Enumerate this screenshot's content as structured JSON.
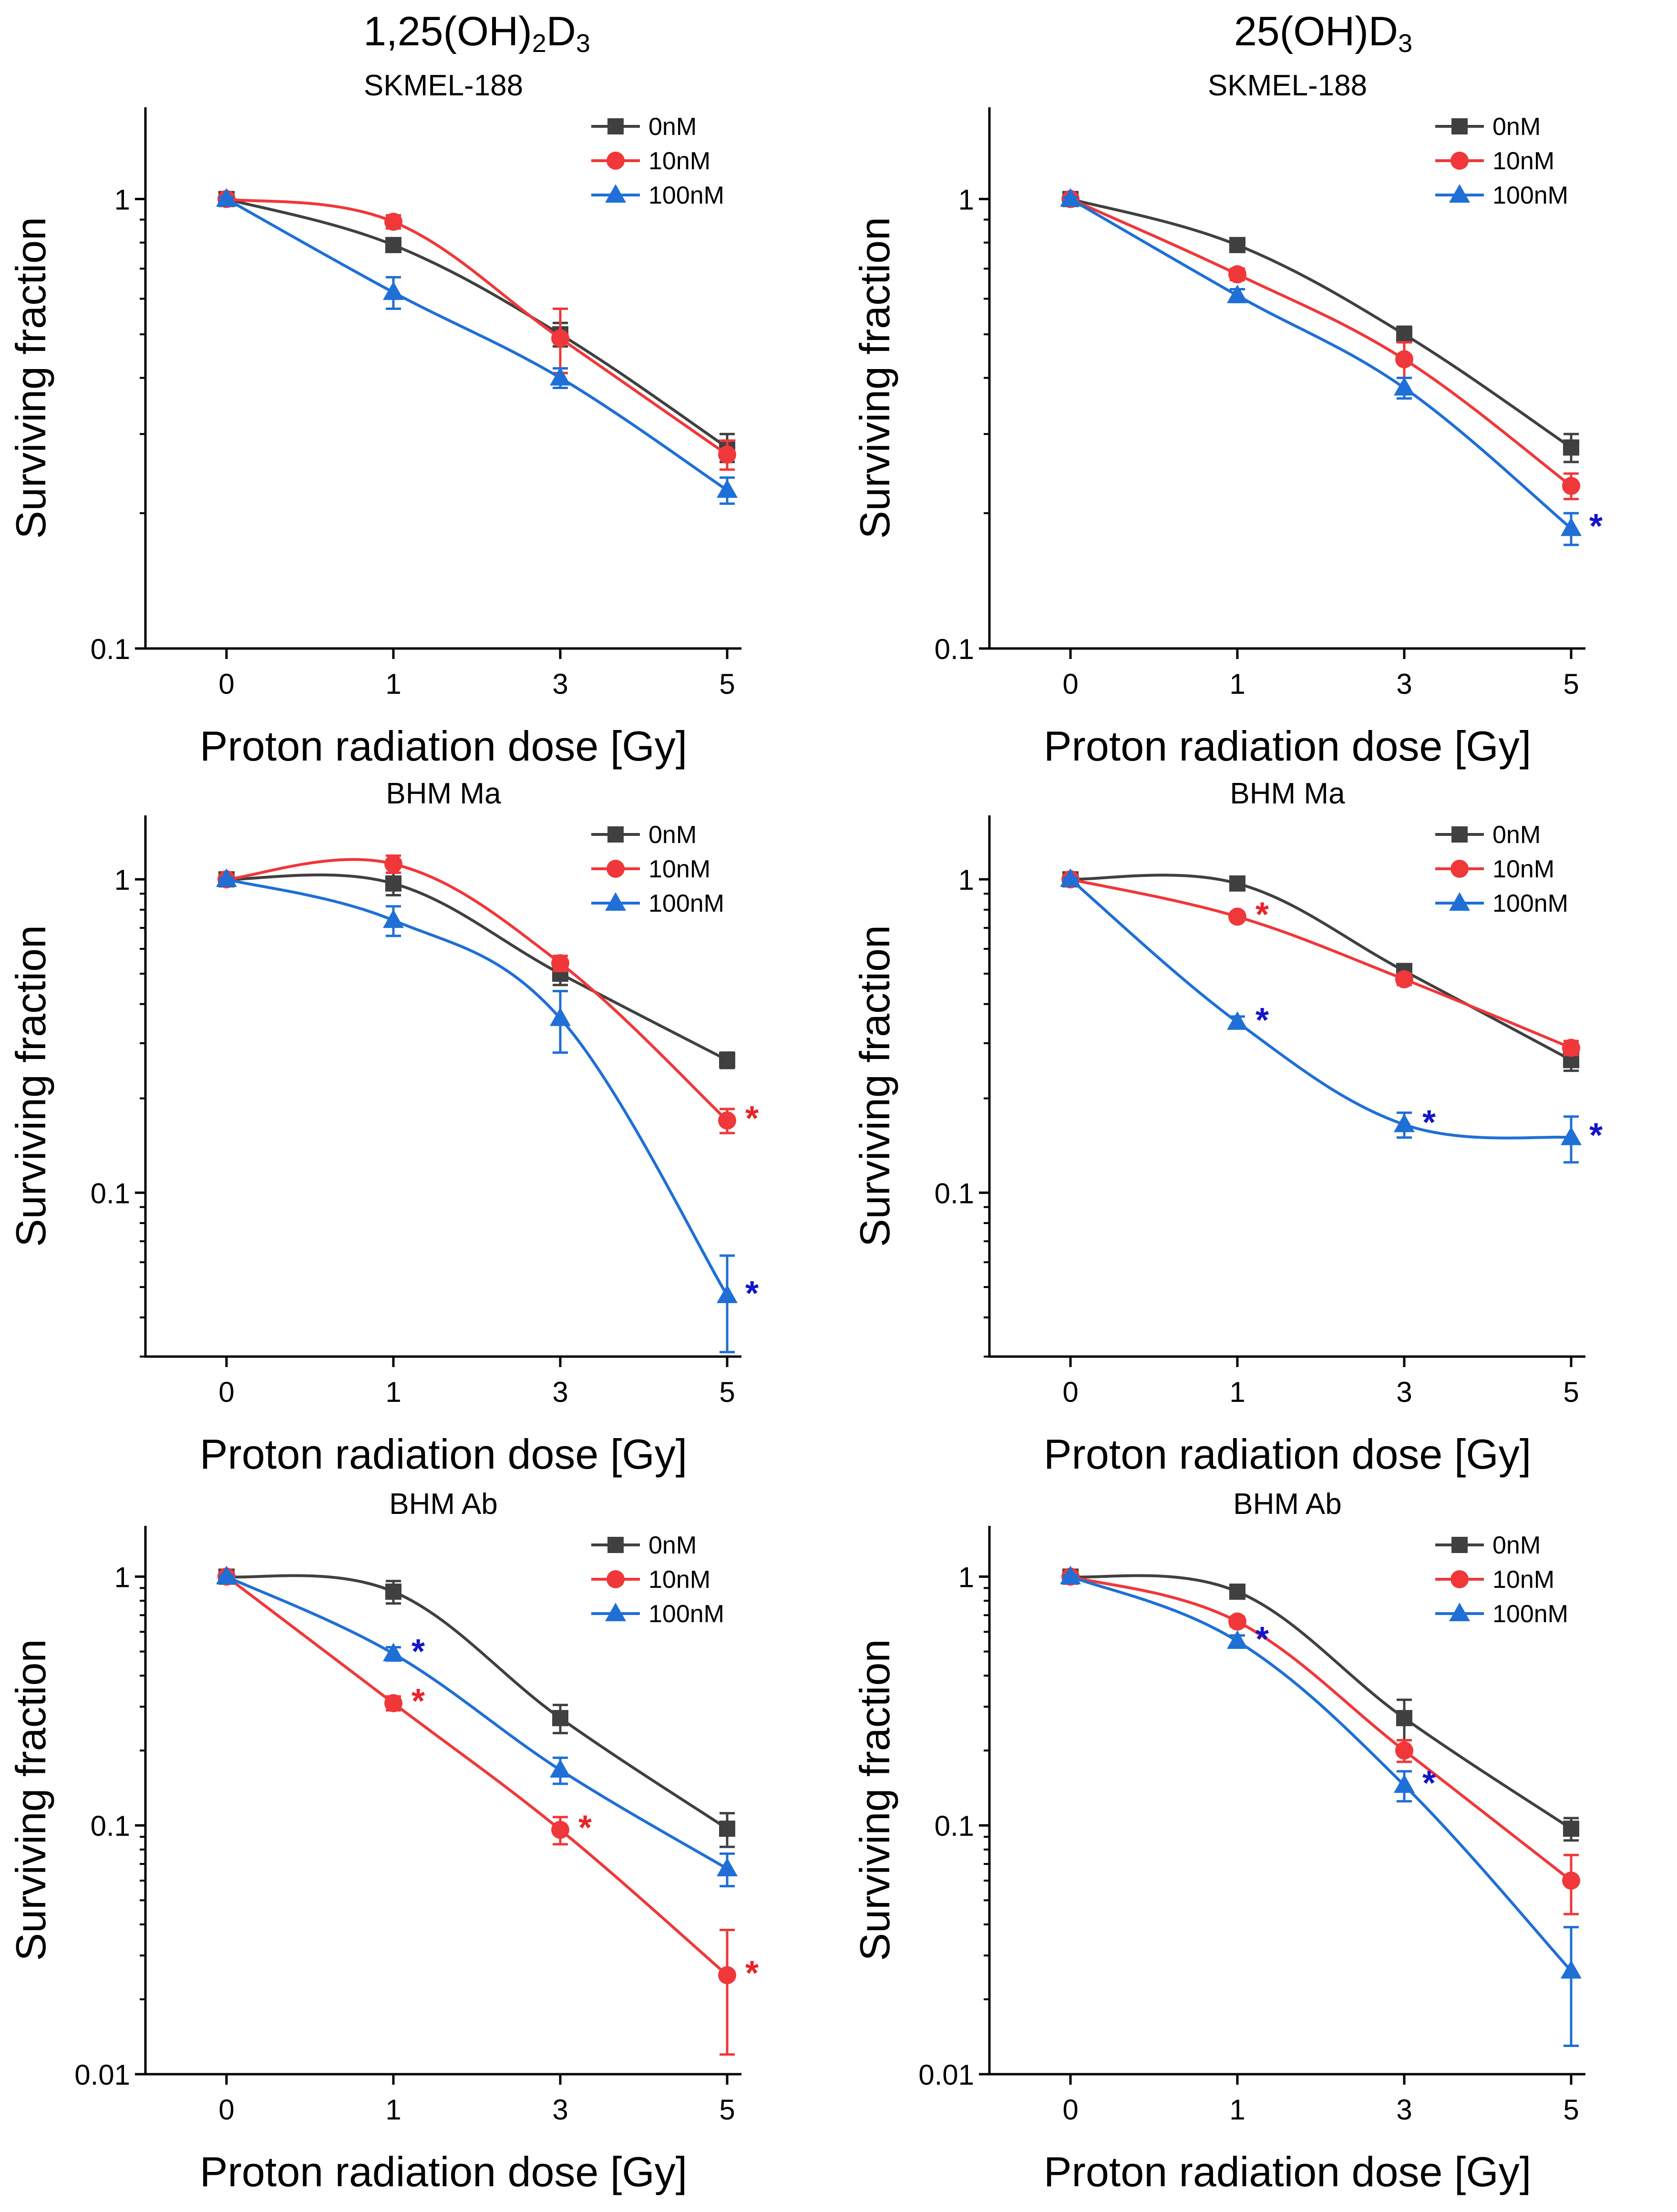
{
  "figure": {
    "column_titles": [
      {
        "base": "1,25(OH)",
        "sub1": "2",
        "mid": "D",
        "sub2": "3"
      },
      {
        "base": "25(OH)D",
        "sub1": "3"
      }
    ]
  },
  "colors": {
    "0nM": "#404040",
    "10nM": "#f0373a",
    "100nM": "#1f6fd6",
    "star_10nM": "#e8242a",
    "star_100nM": "#1414c8"
  },
  "chart_data": [
    {
      "type": "line",
      "panel": "1,25(OH)2D3 – SKMEL-188",
      "title": "SKMEL-188",
      "xlabel": "Proton radiation dose [Gy]",
      "ylabel": "Surviving fraction",
      "categories": [
        "0",
        "1",
        "3",
        "5"
      ],
      "yscale": "log",
      "ylim": [
        0.1,
        1.6
      ],
      "yticks": [
        {
          "v": 0.1,
          "label": "0.1"
        },
        {
          "v": 1,
          "label": "1"
        }
      ],
      "legend": [
        "0nM",
        "10nM",
        "100nM"
      ],
      "series": [
        {
          "name": "0nM",
          "marker": "square",
          "values": [
            1.0,
            0.79,
            0.5,
            0.28
          ],
          "err": [
            0.01,
            0.02,
            0.03,
            0.02
          ],
          "sig": [
            false,
            false,
            false,
            false
          ]
        },
        {
          "name": "10nM",
          "marker": "circle",
          "values": [
            1.0,
            0.89,
            0.49,
            0.27
          ],
          "err": [
            0.01,
            0.03,
            0.08,
            0.02
          ],
          "sig": [
            false,
            false,
            false,
            false
          ]
        },
        {
          "name": "100nM",
          "marker": "triangle",
          "values": [
            1.0,
            0.62,
            0.4,
            0.225
          ],
          "err": [
            0.01,
            0.05,
            0.02,
            0.015
          ],
          "sig": [
            false,
            false,
            false,
            false
          ]
        }
      ]
    },
    {
      "type": "line",
      "panel": "25(OH)D3 – SKMEL-188",
      "title": "SKMEL-188",
      "xlabel": "Proton radiation dose [Gy]",
      "ylabel": "Surviving fraction",
      "categories": [
        "0",
        "1",
        "3",
        "5"
      ],
      "yscale": "log",
      "ylim": [
        0.1,
        1.6
      ],
      "yticks": [
        {
          "v": 0.1,
          "label": "0.1"
        },
        {
          "v": 1,
          "label": "1"
        }
      ],
      "legend": [
        "0nM",
        "10nM",
        "100nM"
      ],
      "series": [
        {
          "name": "0nM",
          "marker": "square",
          "values": [
            1.0,
            0.79,
            0.5,
            0.28
          ],
          "err": [
            0.01,
            0.02,
            0.02,
            0.02
          ],
          "sig": [
            false,
            false,
            false,
            false
          ]
        },
        {
          "name": "10nM",
          "marker": "circle",
          "values": [
            1.0,
            0.68,
            0.44,
            0.23
          ],
          "err": [
            0.01,
            0.02,
            0.04,
            0.015
          ],
          "sig": [
            false,
            false,
            false,
            false
          ]
        },
        {
          "name": "100nM",
          "marker": "triangle",
          "values": [
            1.0,
            0.61,
            0.38,
            0.185
          ],
          "err": [
            0.01,
            0.02,
            0.02,
            0.015
          ],
          "sig": [
            false,
            false,
            false,
            true
          ]
        }
      ]
    },
    {
      "type": "line",
      "panel": "1,25(OH)2D3 – BHM Ma",
      "title": "BHM Ma",
      "xlabel": "Proton radiation dose [Gy]",
      "ylabel": "Surviving fraction",
      "categories": [
        "0",
        "1",
        "3",
        "5"
      ],
      "yscale": "log",
      "ylim": [
        0.03,
        1.6
      ],
      "yticks": [
        {
          "v": 0.1,
          "label": "0.1"
        },
        {
          "v": 1,
          "label": "1"
        }
      ],
      "legend": [
        "0nM",
        "10nM",
        "100nM"
      ],
      "series": [
        {
          "name": "0nM",
          "marker": "square",
          "values": [
            1.0,
            0.97,
            0.5,
            0.265
          ],
          "err": [
            0.01,
            0.08,
            0.04,
            0.015
          ],
          "sig": [
            false,
            false,
            false,
            false
          ]
        },
        {
          "name": "10nM",
          "marker": "circle",
          "values": [
            1.0,
            1.12,
            0.54,
            0.17
          ],
          "err": [
            0.01,
            0.07,
            0.03,
            0.015
          ],
          "sig": [
            false,
            false,
            false,
            true
          ]
        },
        {
          "name": "100nM",
          "marker": "triangle",
          "values": [
            1.0,
            0.74,
            0.36,
            0.047
          ],
          "err": [
            0.01,
            0.08,
            0.08,
            0.016
          ],
          "sig": [
            false,
            false,
            false,
            true
          ]
        }
      ]
    },
    {
      "type": "line",
      "panel": "25(OH)D3 – BHM Ma",
      "title": "BHM Ma",
      "xlabel": "Proton radiation dose [Gy]",
      "ylabel": "Surviving fraction",
      "categories": [
        "0",
        "1",
        "3",
        "5"
      ],
      "yscale": "log",
      "ylim": [
        0.03,
        1.6
      ],
      "yticks": [
        {
          "v": 0.1,
          "label": "0.1"
        },
        {
          "v": 1,
          "label": "1"
        }
      ],
      "legend": [
        "0nM",
        "10nM",
        "100nM"
      ],
      "series": [
        {
          "name": "0nM",
          "marker": "square",
          "values": [
            1.0,
            0.97,
            0.51,
            0.265
          ],
          "err": [
            0.01,
            0.03,
            0.02,
            0.02
          ],
          "sig": [
            false,
            false,
            false,
            false
          ]
        },
        {
          "name": "10nM",
          "marker": "circle",
          "values": [
            1.0,
            0.76,
            0.48,
            0.29
          ],
          "err": [
            0.01,
            0.02,
            0.02,
            0.015
          ],
          "sig": [
            false,
            true,
            false,
            false
          ]
        },
        {
          "name": "100nM",
          "marker": "triangle",
          "values": [
            1.0,
            0.35,
            0.165,
            0.15
          ],
          "err": [
            0.01,
            0.015,
            0.015,
            0.025
          ],
          "sig": [
            false,
            true,
            true,
            true
          ]
        }
      ]
    },
    {
      "type": "line",
      "panel": "1,25(OH)2D3 – BHM Ab",
      "title": "BHM Ab",
      "xlabel": "Proton radiation dose [Gy]",
      "ylabel": "Surviving fraction",
      "categories": [
        "0",
        "1",
        "3",
        "5"
      ],
      "yscale": "log",
      "ylim": [
        0.01,
        1.6
      ],
      "yticks": [
        {
          "v": 0.01,
          "label": "0.01"
        },
        {
          "v": 0.1,
          "label": "0.1"
        },
        {
          "v": 1,
          "label": "1"
        }
      ],
      "legend": [
        "0nM",
        "10nM",
        "100nM"
      ],
      "series": [
        {
          "name": "0nM",
          "marker": "square",
          "values": [
            1.0,
            0.87,
            0.27,
            0.097
          ],
          "err": [
            0.01,
            0.09,
            0.035,
            0.015
          ],
          "sig": [
            false,
            false,
            false,
            false
          ]
        },
        {
          "name": "10nM",
          "marker": "circle",
          "values": [
            1.0,
            0.31,
            0.096,
            0.025
          ],
          "err": [
            0.01,
            0.02,
            0.012,
            0.013
          ],
          "sig": [
            false,
            true,
            true,
            true
          ]
        },
        {
          "name": "100nM",
          "marker": "triangle",
          "values": [
            1.0,
            0.49,
            0.167,
            0.067
          ],
          "err": [
            0.01,
            0.03,
            0.02,
            0.01
          ],
          "sig": [
            false,
            true,
            false,
            false
          ]
        }
      ]
    },
    {
      "type": "line",
      "panel": "25(OH)D3 – BHM Ab",
      "title": "BHM Ab",
      "xlabel": "Proton radiation dose [Gy]",
      "ylabel": "Surviving fraction",
      "categories": [
        "0",
        "1",
        "3",
        "5"
      ],
      "yscale": "log",
      "ylim": [
        0.01,
        1.6
      ],
      "yticks": [
        {
          "v": 0.01,
          "label": "0.01"
        },
        {
          "v": 0.1,
          "label": "0.1"
        },
        {
          "v": 1,
          "label": "1"
        }
      ],
      "legend": [
        "0nM",
        "10nM",
        "100nM"
      ],
      "series": [
        {
          "name": "0nM",
          "marker": "square",
          "values": [
            1.0,
            0.87,
            0.27,
            0.097
          ],
          "err": [
            0.01,
            0.03,
            0.05,
            0.01
          ],
          "sig": [
            false,
            false,
            false,
            false
          ]
        },
        {
          "name": "10nM",
          "marker": "circle",
          "values": [
            1.0,
            0.66,
            0.2,
            0.06
          ],
          "err": [
            0.01,
            0.03,
            0.02,
            0.016
          ],
          "sig": [
            false,
            false,
            false,
            false
          ]
        },
        {
          "name": "100nM",
          "marker": "triangle",
          "values": [
            1.0,
            0.55,
            0.145,
            0.026
          ],
          "err": [
            0.01,
            0.03,
            0.02,
            0.013
          ],
          "sig": [
            false,
            true,
            true,
            false
          ]
        }
      ]
    }
  ]
}
